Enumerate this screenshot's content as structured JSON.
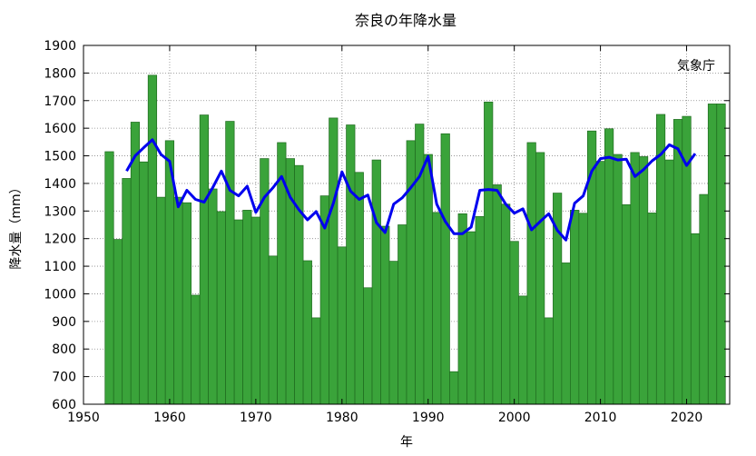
{
  "chart_data": {
    "type": "bar",
    "title": "奈良の年降水量",
    "xlabel": "年",
    "ylabel": "降水量（mm）",
    "annotation": "気象庁",
    "xlim": [
      1950,
      2025
    ],
    "ylim": [
      600,
      1900
    ],
    "x_ticks": [
      1950,
      1960,
      1970,
      1980,
      1990,
      2000,
      2010,
      2020
    ],
    "y_ticks": [
      600,
      700,
      800,
      900,
      1000,
      1100,
      1200,
      1300,
      1400,
      1500,
      1600,
      1700,
      1800,
      1900
    ],
    "grid": true,
    "colors": {
      "bar_fill": "#3aa33a",
      "bar_stroke": "#1f6b1f",
      "line": "#0000ee",
      "grid": "#888888"
    },
    "series": [
      {
        "kind": "bar",
        "x": [
          1953,
          1954,
          1955,
          1956,
          1957,
          1958,
          1959,
          1960,
          1961,
          1962,
          1963,
          1964,
          1965,
          1966,
          1967,
          1968,
          1969,
          1970,
          1971,
          1972,
          1973,
          1974,
          1975,
          1976,
          1977,
          1978,
          1979,
          1980,
          1981,
          1982,
          1983,
          1984,
          1985,
          1986,
          1987,
          1988,
          1989,
          1990,
          1991,
          1992,
          1993,
          1994,
          1995,
          1996,
          1997,
          1998,
          1999,
          2000,
          2001,
          2002,
          2003,
          2004,
          2005,
          2006,
          2007,
          2008,
          2009,
          2010,
          2011,
          2012,
          2013,
          2014,
          2015,
          2016,
          2017,
          2018,
          2019,
          2020,
          2021,
          2022,
          2023,
          2024
        ],
        "values": [
          1515,
          1197,
          1418,
          1622,
          1478,
          1792,
          1350,
          1555,
          1350,
          1330,
          995,
          1648,
          1380,
          1298,
          1625,
          1268,
          1303,
          1278,
          1490,
          1137,
          1548,
          1490,
          1465,
          1120,
          913,
          1355,
          1637,
          1170,
          1612,
          1440,
          1022,
          1485,
          1245,
          1118,
          1250,
          1555,
          1615,
          1505,
          1295,
          1580,
          718,
          1290,
          1225,
          1280,
          1695,
          1395,
          1325,
          1190,
          992,
          1548,
          1512,
          913,
          1365,
          1112,
          1303,
          1292,
          1590,
          1480,
          1598,
          1505,
          1323,
          1512,
          1497,
          1293,
          1650,
          1485,
          1632,
          1643,
          1218,
          1360,
          1688,
          1688
        ]
      },
      {
        "kind": "line",
        "x": [
          1955,
          1956,
          1957,
          1958,
          1959,
          1960,
          1961,
          1962,
          1963,
          1964,
          1965,
          1966,
          1967,
          1968,
          1969,
          1970,
          1971,
          1972,
          1973,
          1974,
          1975,
          1976,
          1977,
          1978,
          1979,
          1980,
          1981,
          1982,
          1983,
          1984,
          1985,
          1986,
          1987,
          1988,
          1989,
          1990,
          1991,
          1992,
          1993,
          1994,
          1995,
          1996,
          1997,
          1998,
          1999,
          2000,
          2001,
          2002,
          2003,
          2004,
          2005,
          2006,
          2007,
          2008,
          2009,
          2010,
          2011,
          2012,
          2013,
          2014,
          2015,
          2016,
          2017,
          2018,
          2019,
          2020,
          2021
        ],
        "values": [
          1445,
          1500,
          1530,
          1558,
          1505,
          1480,
          1315,
          1375,
          1342,
          1332,
          1385,
          1445,
          1375,
          1355,
          1390,
          1295,
          1350,
          1385,
          1425,
          1350,
          1305,
          1268,
          1298,
          1238,
          1328,
          1442,
          1372,
          1342,
          1358,
          1258,
          1222,
          1325,
          1348,
          1385,
          1425,
          1498,
          1325,
          1262,
          1218,
          1218,
          1242,
          1375,
          1378,
          1375,
          1325,
          1292,
          1308,
          1232,
          1262,
          1290,
          1230,
          1195,
          1328,
          1355,
          1445,
          1490,
          1495,
          1485,
          1488,
          1425,
          1450,
          1482,
          1505,
          1540,
          1525,
          1465,
          1508
        ]
      }
    ]
  }
}
